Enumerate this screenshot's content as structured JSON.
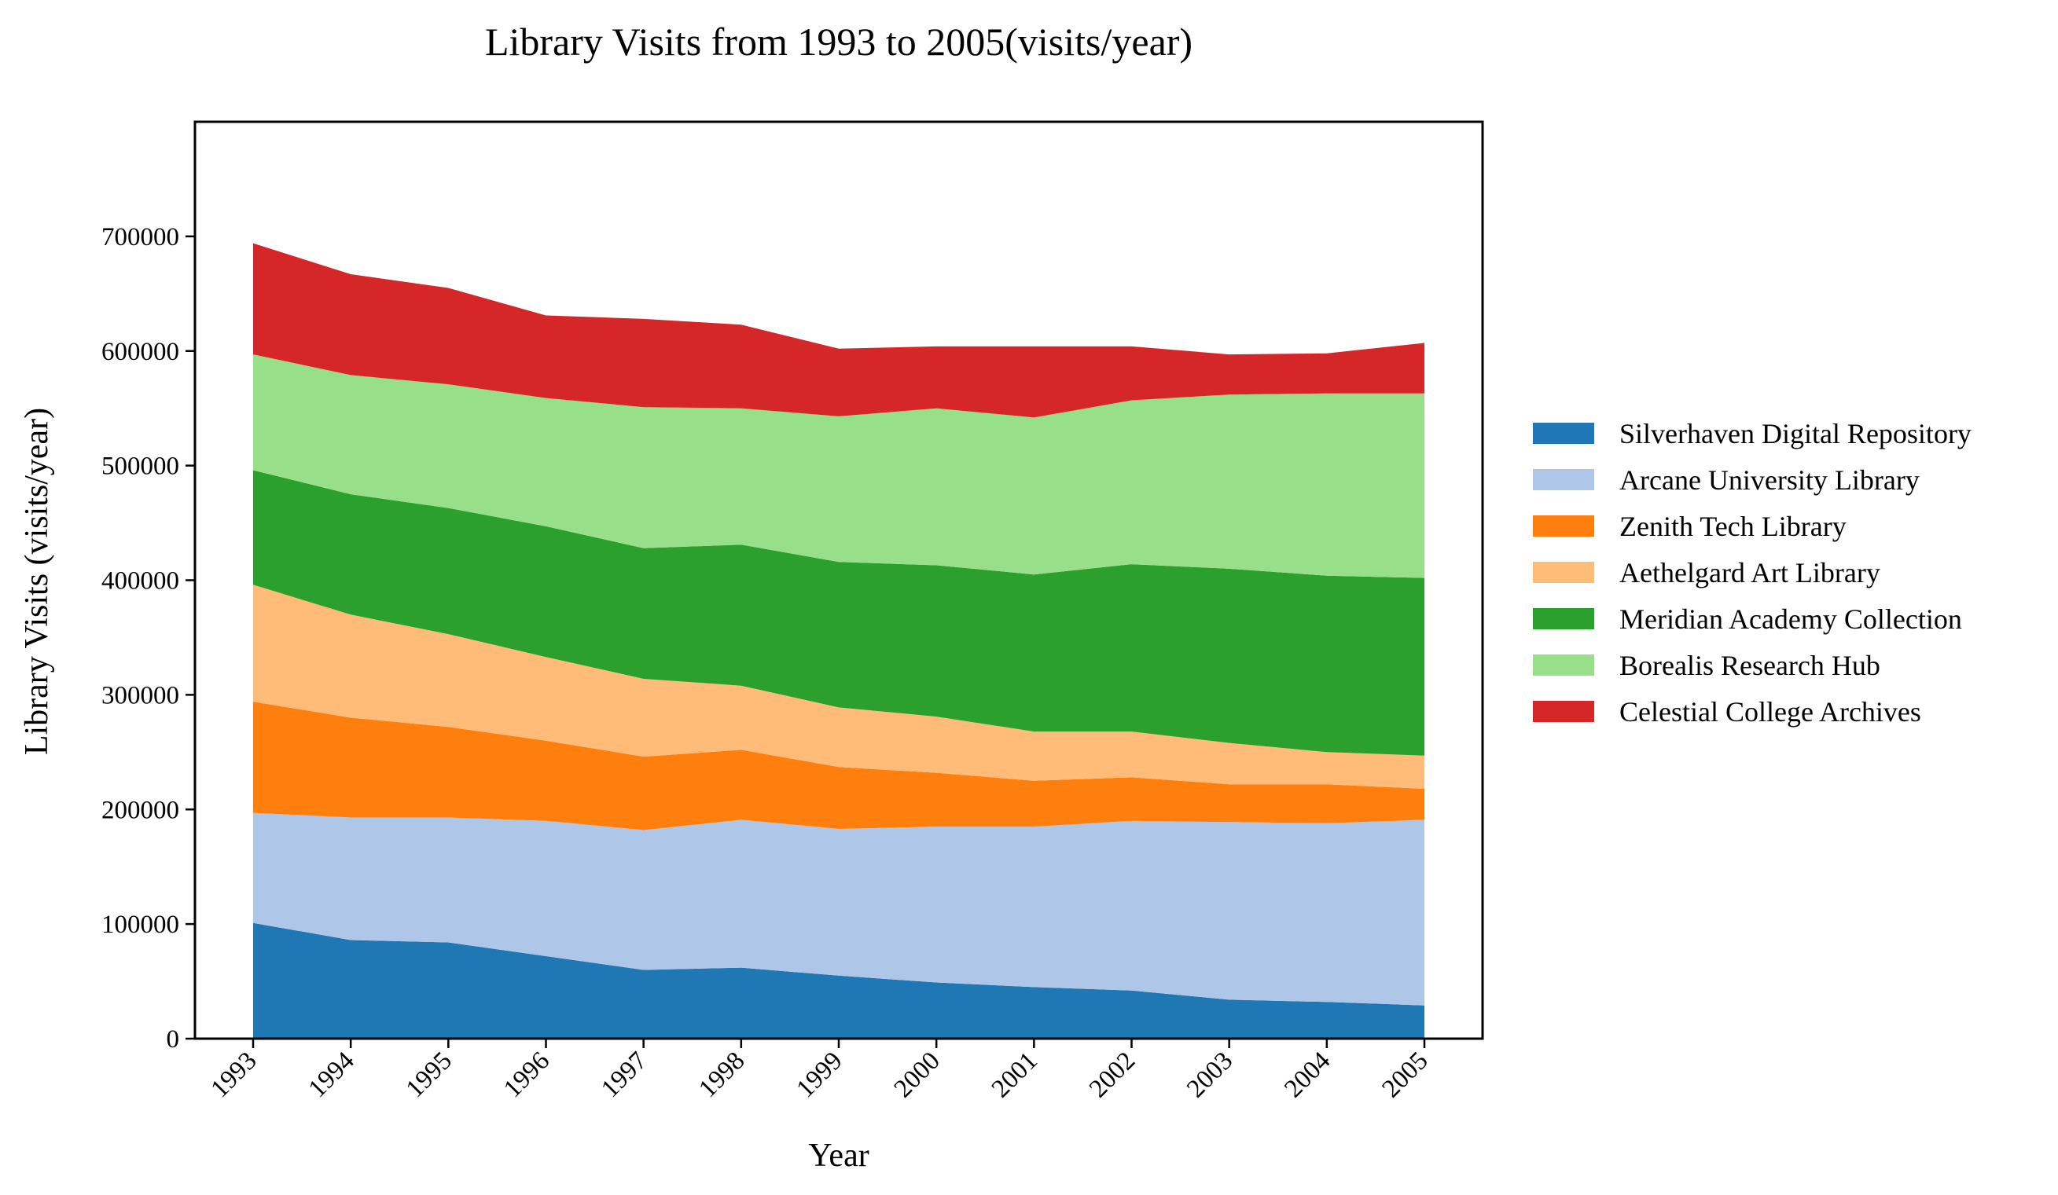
{
  "chart_data": {
    "type": "area",
    "stacked": true,
    "title": "Library Visits from 1993 to 2005(visits/year)",
    "xlabel": "Year",
    "ylabel": "Library Visits (visits/year)",
    "x": [
      "1993",
      "1994",
      "1995",
      "1996",
      "1997",
      "1998",
      "1999",
      "2000",
      "2001",
      "2002",
      "2003",
      "2004",
      "2005"
    ],
    "ylim": [
      0,
      800000
    ],
    "yticks": [
      0,
      100000,
      200000,
      300000,
      400000,
      500000,
      600000,
      700000
    ],
    "grid": false,
    "legend_position": "right",
    "series": [
      {
        "name": "Silverhaven Digital Repository",
        "color": "#1f77b4",
        "values": [
          101000,
          86000,
          84000,
          72000,
          60000,
          62000,
          55000,
          49000,
          45000,
          42000,
          34000,
          32000,
          29000
        ]
      },
      {
        "name": "Arcane University Library",
        "color": "#aec7e8",
        "values": [
          96000,
          107000,
          109000,
          118000,
          122000,
          129000,
          128000,
          136000,
          140000,
          148000,
          155000,
          156000,
          162000
        ]
      },
      {
        "name": "Zenith Tech Library",
        "color": "#ff7f0e",
        "values": [
          97000,
          87000,
          79000,
          70000,
          64000,
          61000,
          54000,
          47000,
          40000,
          38000,
          33000,
          34000,
          27000
        ]
      },
      {
        "name": "Aethelgard Art Library",
        "color": "#ffbb78",
        "values": [
          102000,
          90000,
          81000,
          73000,
          68000,
          56000,
          52000,
          49000,
          43000,
          40000,
          36000,
          28000,
          29000
        ]
      },
      {
        "name": "Meridian Academy Collection",
        "color": "#2ca02c",
        "values": [
          100000,
          105000,
          110000,
          114000,
          114000,
          123000,
          127000,
          132000,
          137000,
          146000,
          152000,
          154000,
          155000
        ]
      },
      {
        "name": "Borealis Research Hub",
        "color": "#98df8a",
        "values": [
          101000,
          104000,
          108000,
          112000,
          123000,
          119000,
          127000,
          137000,
          137000,
          143000,
          152000,
          159000,
          161000
        ]
      },
      {
        "name": "Celestial College Archives",
        "color": "#d62728",
        "values": [
          97000,
          88000,
          84000,
          72000,
          77000,
          73000,
          59000,
          54000,
          62000,
          47000,
          35000,
          35000,
          44000
        ]
      }
    ]
  }
}
